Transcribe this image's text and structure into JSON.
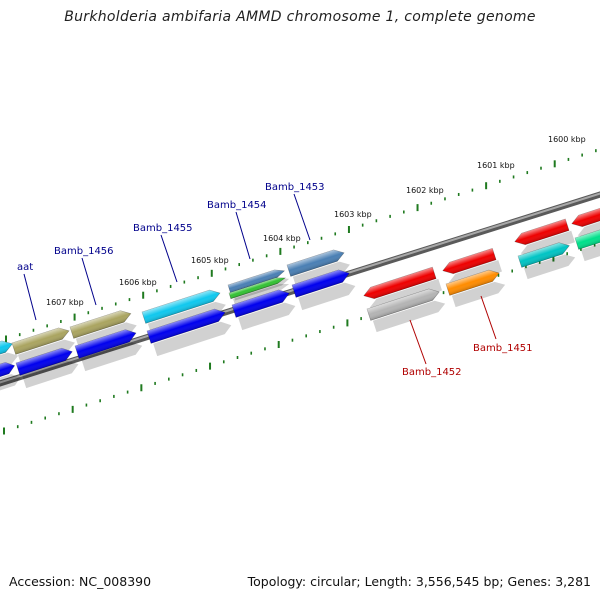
{
  "title": "Burkholderia ambifaria AMMD chromosome 1, complete genome",
  "footer": {
    "accession": "Accession: NC_008390",
    "summary": "Topology: circular; Length: 3,556,545 bp; Genes: 3,281"
  },
  "colors": {
    "backbone": "#777777",
    "ticks": "#1f7a1f",
    "upper_gene_label": "#00008b",
    "lower_gene_label": "#b00000",
    "blue": "#0000ee",
    "cyan": "#10c8ee",
    "olive": "#aaa460",
    "steel": "#4a7fb4",
    "green": "#33c233",
    "red": "#ee0000",
    "grey": "#b4b4b4",
    "orange": "#ff8c00",
    "teal": "#00c4c4",
    "mint": "#00e08a"
  },
  "kbp_labels": [
    "1600 kbp",
    "1601 kbp",
    "1602 kbp",
    "1603 kbp",
    "1604 kbp",
    "1605 kbp",
    "1606 kbp",
    "1607 kbp"
  ],
  "upper_labels": [
    "Bamb_1453",
    "Bamb_1454",
    "Bamb_1455",
    "Bamb_1456",
    "aat"
  ],
  "lower_labels": [
    "Bamb_1451",
    "Bamb_1452"
  ]
}
